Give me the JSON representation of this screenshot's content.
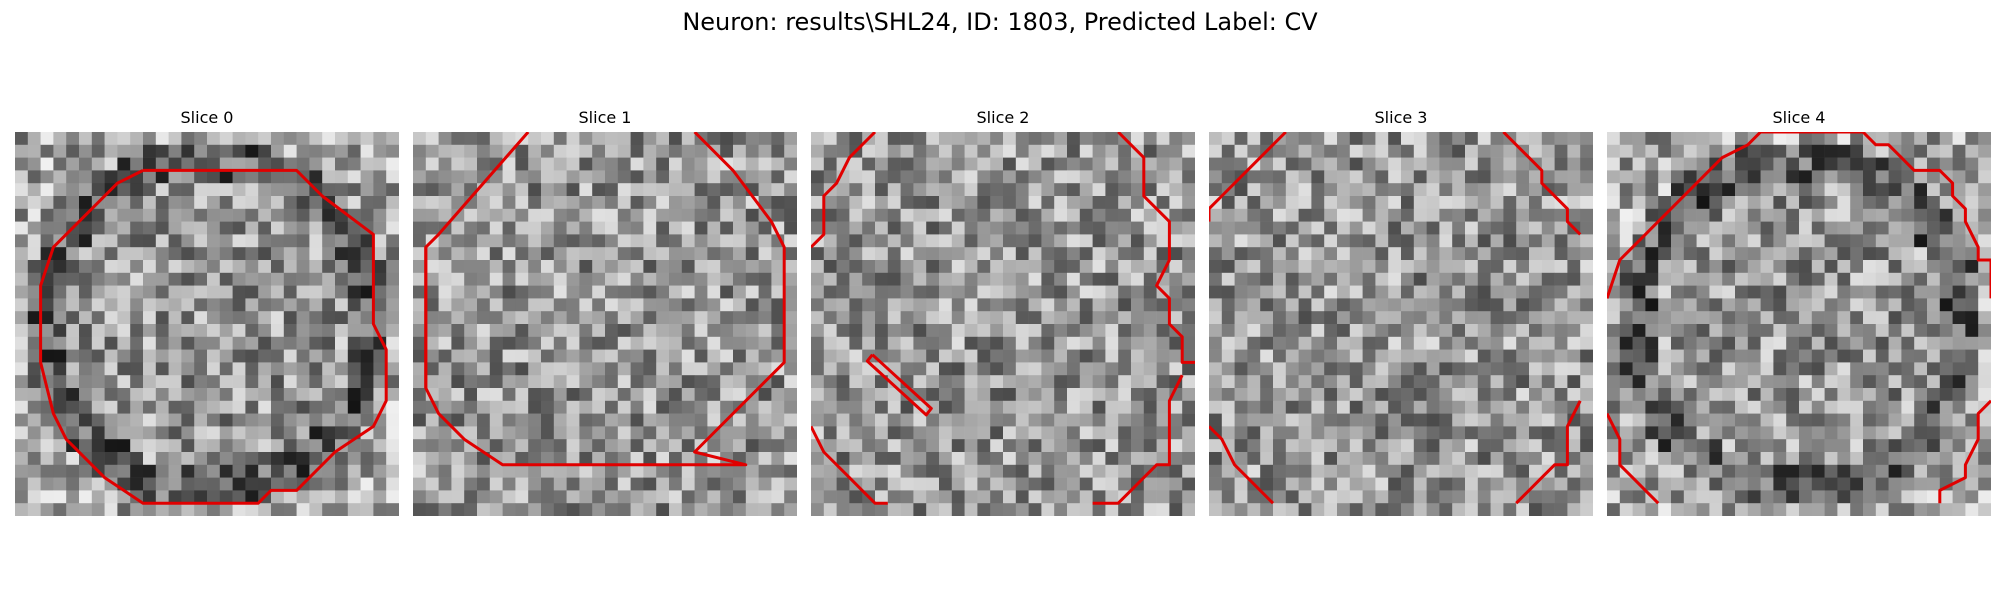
{
  "figure": {
    "title": "Neuron: results\\SHL24, ID: 1803, Predicted Label: CV"
  },
  "grid_cells": 30,
  "contour_color": "#e00000",
  "slices": [
    {
      "title": "Slice 0",
      "seed": 11,
      "dark_ring": true,
      "contours": [
        [
          [
            10,
            3
          ],
          [
            22,
            3
          ],
          [
            24,
            5
          ],
          [
            28,
            8
          ],
          [
            28,
            15
          ],
          [
            29,
            17
          ],
          [
            29,
            21
          ],
          [
            28,
            23
          ],
          [
            25,
            25
          ],
          [
            24,
            26
          ],
          [
            22,
            28
          ],
          [
            20,
            28
          ],
          [
            19,
            29
          ],
          [
            10,
            29
          ],
          [
            7,
            27
          ],
          [
            6,
            26
          ],
          [
            4,
            24
          ],
          [
            3,
            22
          ],
          [
            2,
            18
          ],
          [
            2,
            12
          ],
          [
            3,
            9
          ],
          [
            6,
            6
          ],
          [
            8,
            4
          ],
          [
            10,
            3
          ]
        ]
      ]
    },
    {
      "title": "Slice 1",
      "seed": 23,
      "dark_ring": false,
      "contours": [
        [
          [
            9,
            0
          ],
          [
            2,
            8
          ],
          [
            1,
            9
          ],
          [
            1,
            20
          ],
          [
            2,
            22
          ],
          [
            4,
            24
          ],
          [
            7,
            26
          ],
          [
            26,
            26
          ],
          [
            22,
            25
          ],
          [
            25,
            22
          ],
          [
            29,
            18
          ],
          [
            29,
            9
          ],
          [
            28,
            7
          ],
          [
            25,
            3
          ],
          [
            22,
            0
          ]
        ],
        [
          [
            1,
            20
          ],
          [
            1,
            9
          ]
        ]
      ]
    },
    {
      "title": "Slice 2",
      "seed": 37,
      "dark_ring": false,
      "contours": [
        [
          [
            5,
            0
          ],
          [
            3,
            2
          ],
          [
            2,
            4
          ],
          [
            1,
            5
          ],
          [
            1,
            8
          ],
          [
            0,
            9
          ]
        ],
        [
          [
            24,
            0
          ],
          [
            25,
            1
          ],
          [
            26,
            2
          ],
          [
            26,
            5
          ],
          [
            27,
            6
          ],
          [
            28,
            7
          ],
          [
            28,
            10
          ],
          [
            27,
            12
          ],
          [
            28,
            13
          ],
          [
            28,
            15
          ],
          [
            29,
            16
          ],
          [
            29,
            18
          ],
          [
            30,
            18
          ]
        ],
        [
          [
            0,
            23
          ],
          [
            1,
            25
          ],
          [
            3,
            27
          ],
          [
            4,
            28
          ],
          [
            5,
            29
          ],
          [
            6,
            29
          ]
        ],
        [
          [
            29,
            19
          ],
          [
            28,
            21
          ],
          [
            28,
            26
          ],
          [
            27,
            26
          ],
          [
            25,
            28
          ],
          [
            24,
            29
          ],
          [
            22,
            29
          ]
        ],
        [
          [
            4.8,
            17.4
          ],
          [
            9.4,
            21.6
          ],
          [
            9.0,
            22.1
          ],
          [
            4.4,
            17.9
          ],
          [
            4.8,
            17.4
          ]
        ]
      ]
    },
    {
      "title": "Slice 3",
      "seed": 51,
      "dark_ring": false,
      "contours": [
        [
          [
            6,
            0
          ],
          [
            4,
            2
          ],
          [
            2,
            4
          ],
          [
            1,
            5
          ],
          [
            0,
            6
          ],
          [
            0,
            7
          ]
        ],
        [
          [
            23,
            0
          ],
          [
            24,
            1
          ],
          [
            25,
            2
          ],
          [
            26,
            3
          ],
          [
            26,
            4
          ],
          [
            28,
            6
          ],
          [
            28,
            7
          ],
          [
            29,
            8
          ]
        ],
        [
          [
            0,
            23
          ],
          [
            1,
            24
          ],
          [
            2,
            26
          ],
          [
            3,
            27
          ],
          [
            4,
            28
          ],
          [
            5,
            29
          ]
        ],
        [
          [
            29,
            21
          ],
          [
            28,
            23
          ],
          [
            28,
            26
          ],
          [
            27,
            26
          ],
          [
            26,
            27
          ],
          [
            25,
            28
          ],
          [
            24,
            29
          ]
        ]
      ]
    },
    {
      "title": "Slice 4",
      "seed": 67,
      "dark_ring": true,
      "contours": [
        [
          [
            0,
            13
          ],
          [
            1,
            10
          ],
          [
            2,
            9
          ],
          [
            3,
            8
          ],
          [
            5,
            6
          ],
          [
            7,
            4
          ],
          [
            9,
            2
          ],
          [
            11,
            1
          ],
          [
            12,
            0
          ],
          [
            20,
            0
          ],
          [
            21,
            1
          ],
          [
            22,
            1
          ],
          [
            23,
            2
          ],
          [
            24,
            3
          ],
          [
            26,
            3
          ],
          [
            27,
            4
          ],
          [
            27,
            5
          ],
          [
            28,
            6
          ],
          [
            28,
            7
          ],
          [
            29,
            9
          ],
          [
            29,
            10
          ],
          [
            30,
            10
          ],
          [
            30,
            13
          ]
        ],
        [
          [
            0,
            22
          ],
          [
            1,
            24
          ],
          [
            1,
            26
          ],
          [
            2,
            27
          ],
          [
            3,
            28
          ],
          [
            4,
            29
          ]
        ],
        [
          [
            30,
            21
          ],
          [
            29,
            22
          ],
          [
            29,
            24
          ],
          [
            28,
            26
          ],
          [
            28,
            27
          ],
          [
            26,
            28
          ],
          [
            26,
            29
          ]
        ]
      ]
    }
  ]
}
